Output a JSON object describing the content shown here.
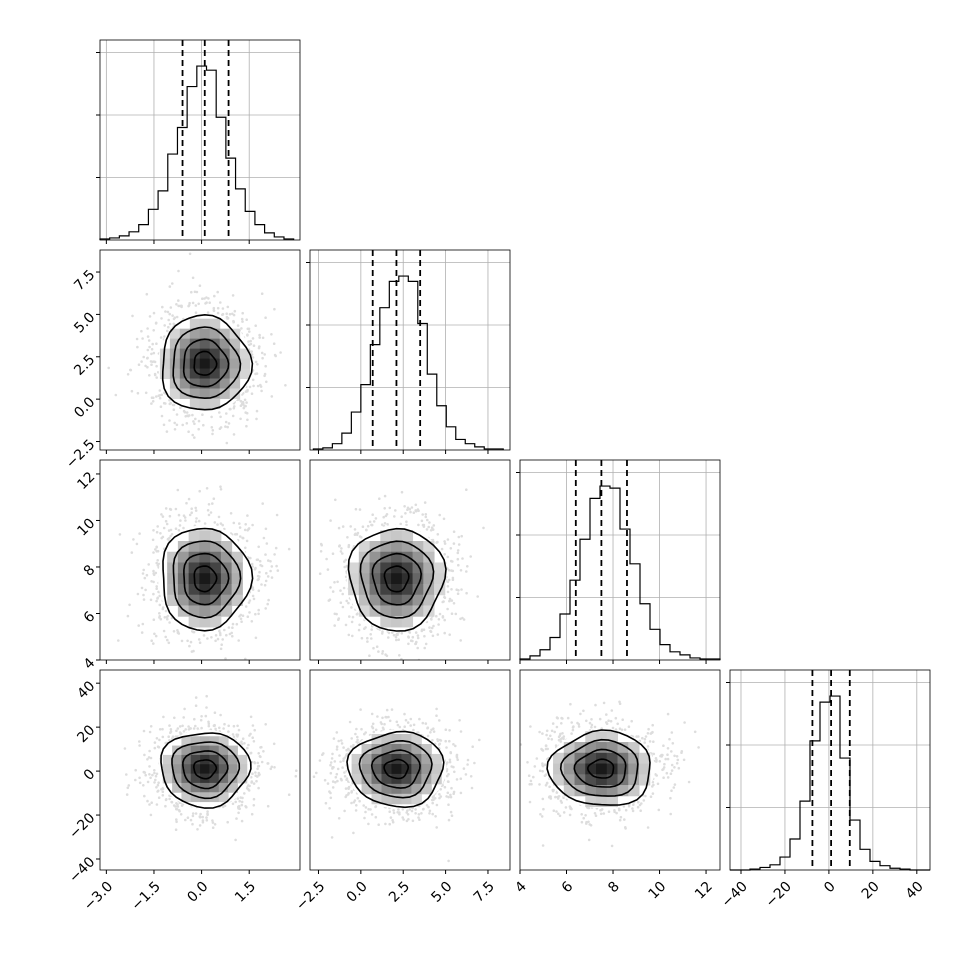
{
  "chart_data": {
    "type": "corner",
    "params": [
      {
        "ticks": [
          "−3.0",
          "−1.5",
          "0.0",
          "1.5"
        ],
        "tick_values": [
          -3.0,
          -1.5,
          0.0,
          1.5
        ],
        "range": [
          -3.2,
          3.1
        ],
        "mean": 0.1,
        "std": 0.7,
        "quantiles": [
          -0.6,
          0.1,
          0.85
        ]
      },
      {
        "ticks": [
          "−2.5",
          "0.0",
          "2.5",
          "5.0",
          "7.5"
        ],
        "tick_values": [
          -2.5,
          0.0,
          2.5,
          5.0,
          7.5
        ],
        "range": [
          -3.0,
          8.8
        ],
        "mean": 2.1,
        "std": 1.4,
        "quantiles": [
          0.7,
          2.1,
          3.5
        ]
      },
      {
        "ticks": [
          "4",
          "6",
          "8",
          "10",
          "12"
        ],
        "tick_values": [
          4,
          6,
          8,
          10,
          12
        ],
        "range": [
          4.0,
          12.6
        ],
        "mean": 7.5,
        "std": 1.1,
        "quantiles": [
          6.4,
          7.5,
          8.6
        ]
      },
      {
        "ticks": [
          "−40",
          "−20",
          "0",
          "20",
          "40"
        ],
        "tick_values": [
          -40,
          -20,
          0,
          20,
          40
        ],
        "range": [
          -45,
          46
        ],
        "mean": 1.0,
        "std": 8.5,
        "quantiles": [
          -7.5,
          1.0,
          9.5
        ]
      }
    ],
    "histograms": [
      {
        "param": 0,
        "bin_edges": [
          -3.2,
          2.9
        ],
        "counts": [
          1,
          2,
          4,
          8,
          15,
          30,
          48,
          84,
          110,
          150,
          170,
          166,
          120,
          80,
          50,
          28,
          15,
          7,
          3,
          1
        ]
      },
      {
        "param": 1,
        "bin_edges": [
          -2.8,
          8.4
        ],
        "counts": [
          1,
          2,
          6,
          16,
          36,
          62,
          100,
          135,
          160,
          165,
          160,
          120,
          72,
          42,
          22,
          10,
          6,
          3,
          1,
          1
        ]
      },
      {
        "param": 2,
        "bin_edges": [
          4.0,
          12.6
        ],
        "counts": [
          1,
          4,
          10,
          22,
          45,
          78,
          118,
          158,
          170,
          168,
          128,
          94,
          55,
          30,
          15,
          8,
          5,
          2,
          1,
          1
        ]
      },
      {
        "param": 3,
        "bin_edges": [
          -45,
          46
        ],
        "counts": [
          0,
          0,
          1,
          3,
          6,
          15,
          36,
          80,
          150,
          195,
          202,
          130,
          58,
          24,
          10,
          5,
          2,
          1,
          0,
          0
        ]
      }
    ]
  }
}
